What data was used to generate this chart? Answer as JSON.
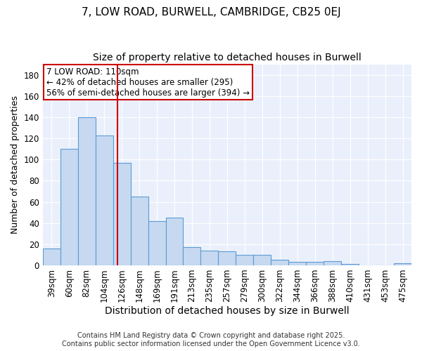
{
  "title1": "7, LOW ROAD, BURWELL, CAMBRIDGE, CB25 0EJ",
  "title2": "Size of property relative to detached houses in Burwell",
  "xlabel": "Distribution of detached houses by size in Burwell",
  "ylabel": "Number of detached properties",
  "categories": [
    "39sqm",
    "60sqm",
    "82sqm",
    "104sqm",
    "126sqm",
    "148sqm",
    "169sqm",
    "191sqm",
    "213sqm",
    "235sqm",
    "257sqm",
    "279sqm",
    "300sqm",
    "322sqm",
    "344sqm",
    "366sqm",
    "388sqm",
    "410sqm",
    "431sqm",
    "453sqm",
    "475sqm"
  ],
  "values": [
    16,
    110,
    140,
    123,
    97,
    65,
    42,
    45,
    17,
    14,
    13,
    10,
    10,
    5,
    3,
    3,
    4,
    1,
    0,
    0,
    2
  ],
  "bar_color": "#c6d9f0",
  "bar_edge_color": "#5b9bd5",
  "vline_label": "7 LOW ROAD: 110sqm",
  "vline_color": "#cc0000",
  "annotation_line1": "← 42% of detached houses are smaller (295)",
  "annotation_line2": "56% of semi-detached houses are larger (394) →",
  "box_edge_color": "#cc0000",
  "ylim": [
    0,
    190
  ],
  "yticks": [
    0,
    20,
    40,
    60,
    80,
    100,
    120,
    140,
    160,
    180
  ],
  "ax_background_color": "#eaf0fb",
  "fig_background_color": "#ffffff",
  "grid_color": "#ffffff",
  "footer": "Contains HM Land Registry data © Crown copyright and database right 2025.\nContains public sector information licensed under the Open Government Licence v3.0.",
  "title_fontsize": 11,
  "subtitle_fontsize": 10,
  "ylabel_fontsize": 9,
  "xlabel_fontsize": 10,
  "tick_fontsize": 8.5,
  "annotation_fontsize": 8.5,
  "footer_fontsize": 7
}
